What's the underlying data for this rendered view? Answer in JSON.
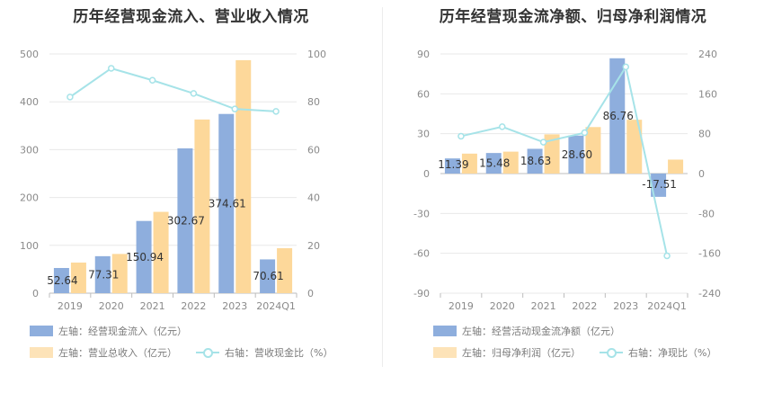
{
  "chart_data": [
    {
      "type": "bar",
      "title": "历年经营现金流入、营业收入情况",
      "categories": [
        "2019",
        "2020",
        "2021",
        "2022",
        "2023",
        "2024Q1"
      ],
      "left_axis": {
        "ticks": [
          "0",
          "100",
          "200",
          "300",
          "400",
          "500"
        ],
        "ylim": [
          0,
          500
        ]
      },
      "right_axis": {
        "ticks": [
          "0",
          "20",
          "40",
          "60",
          "80",
          "100"
        ],
        "ylim": [
          0,
          100
        ]
      },
      "series": [
        {
          "name": "左轴：经营现金流入（亿元）",
          "kind": "bar",
          "axis": "left",
          "color": "#8eaedd",
          "values": [
            52.64,
            77.31,
            150.94,
            302.67,
            374.61,
            70.61
          ],
          "labels": [
            "52.64",
            "77.31",
            "150.94",
            "302.67",
            "374.61",
            "70.61"
          ]
        },
        {
          "name": "左轴：营业总收入（亿元）",
          "kind": "bar",
          "axis": "left",
          "color": "#fdd89a",
          "values": [
            64,
            82,
            170,
            363,
            487,
            94
          ]
        },
        {
          "name": "右轴：营收现金比（%）",
          "kind": "line",
          "axis": "right",
          "color": "#a6e3e8",
          "values": [
            82,
            94,
            89,
            83.5,
            77,
            76
          ]
        }
      ]
    },
    {
      "type": "bar",
      "title": "历年经营现金流净额、归母净利润情况",
      "categories": [
        "2019",
        "2020",
        "2021",
        "2022",
        "2023",
        "2024Q1"
      ],
      "left_axis": {
        "ticks": [
          "-90",
          "-60",
          "-30",
          "0",
          "30",
          "60",
          "90"
        ],
        "ylim": [
          -90,
          90
        ]
      },
      "right_axis": {
        "ticks": [
          "-240",
          "-160",
          "-80",
          "0",
          "80",
          "160",
          "240"
        ],
        "ylim": [
          -240,
          240
        ]
      },
      "series": [
        {
          "name": "左轴：经营活动现金流净额（亿元）",
          "kind": "bar",
          "axis": "left",
          "color": "#8eaedd",
          "values": [
            11.39,
            15.48,
            18.63,
            28.6,
            86.76,
            -17.51
          ],
          "labels": [
            "11.39",
            "15.48",
            "18.63",
            "28.60",
            "86.76",
            "-17.51"
          ]
        },
        {
          "name": "左轴：归母净利润（亿元）",
          "kind": "bar",
          "axis": "left",
          "color": "#fdd89a",
          "values": [
            15,
            16.5,
            29.5,
            35,
            40.5,
            10.5
          ]
        },
        {
          "name": "右轴：净现比（%）",
          "kind": "line",
          "axis": "right",
          "color": "#a6e3e8",
          "values": [
            75,
            94,
            63,
            82,
            214,
            -165
          ]
        }
      ]
    }
  ]
}
